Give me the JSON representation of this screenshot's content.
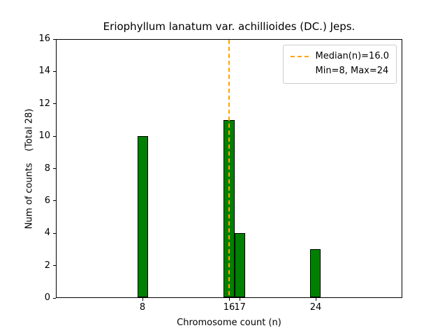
{
  "chart_data": {
    "type": "bar",
    "title": "Eriophyllum lanatum var. achillioides (DC.) Jeps.",
    "xlabel": "Chromosome count (n)",
    "ylabel": "Num of counts    (Total 28)",
    "x": [
      8,
      16,
      17,
      24
    ],
    "values": [
      10,
      11,
      4,
      3
    ],
    "total": 28,
    "xlim": [
      0,
      32
    ],
    "ylim": [
      0,
      16
    ],
    "xticks": [
      8,
      16,
      17,
      24
    ],
    "yticks": [
      0,
      2,
      4,
      6,
      8,
      10,
      12,
      14,
      16
    ],
    "bar_width": 1,
    "bar_color": "#008000",
    "bar_edge_color": "#000000",
    "median_line": {
      "x": 16,
      "color": "#ffa500",
      "style": "dashed",
      "label": "Median(n)=16.0"
    },
    "legend_labels": [
      "Median(n)=16.0",
      "Min=8, Max=24"
    ],
    "legend_position": "upper right",
    "grid": false
  }
}
